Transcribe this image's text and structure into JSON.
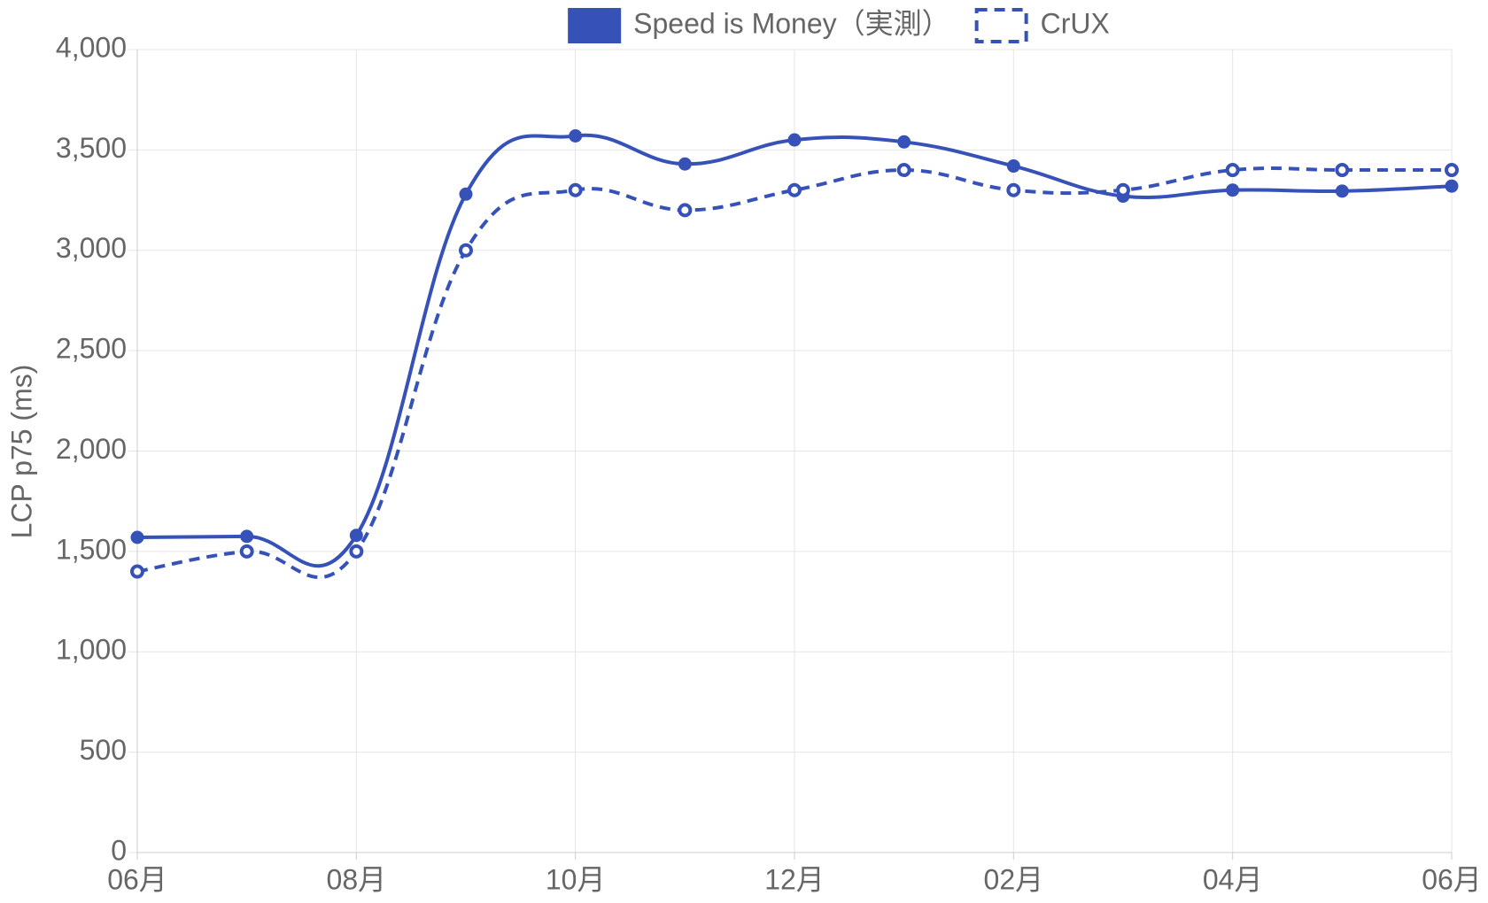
{
  "chart_data": {
    "type": "line",
    "y_label": "LCP p75 (ms)",
    "legend": "top",
    "grid": true,
    "categories": [
      "06月",
      null,
      "08月",
      null,
      "10月",
      null,
      "12月",
      null,
      "02月",
      null,
      "04月",
      null,
      "06月"
    ],
    "series": [
      {
        "name": "Speed is Money（実測）",
        "color": "#3652b8",
        "dashed": false,
        "values": [
          1570,
          1575,
          1580,
          3280,
          3570,
          3430,
          3550,
          3540,
          3420,
          3270,
          3300,
          3295,
          3320
        ]
      },
      {
        "name": "CrUX",
        "color": "#3652b8",
        "dashed": true,
        "values": [
          1400,
          1500,
          1500,
          3000,
          3300,
          3200,
          3300,
          3400,
          3300,
          3300,
          3400,
          3400,
          3400
        ]
      }
    ],
    "ylim": [
      0,
      4000
    ],
    "yticks": [
      0,
      500,
      {
        "value": 1000,
        "label": "1,000"
      },
      {
        "value": 1500,
        "label": "1,500"
      },
      {
        "value": 2000,
        "label": "2,000"
      },
      {
        "value": 2500,
        "label": "2,500"
      },
      {
        "value": 3000,
        "label": "3,000"
      },
      {
        "value": 3500,
        "label": "3,500"
      },
      {
        "value": 4000,
        "label": "4,000"
      }
    ]
  }
}
